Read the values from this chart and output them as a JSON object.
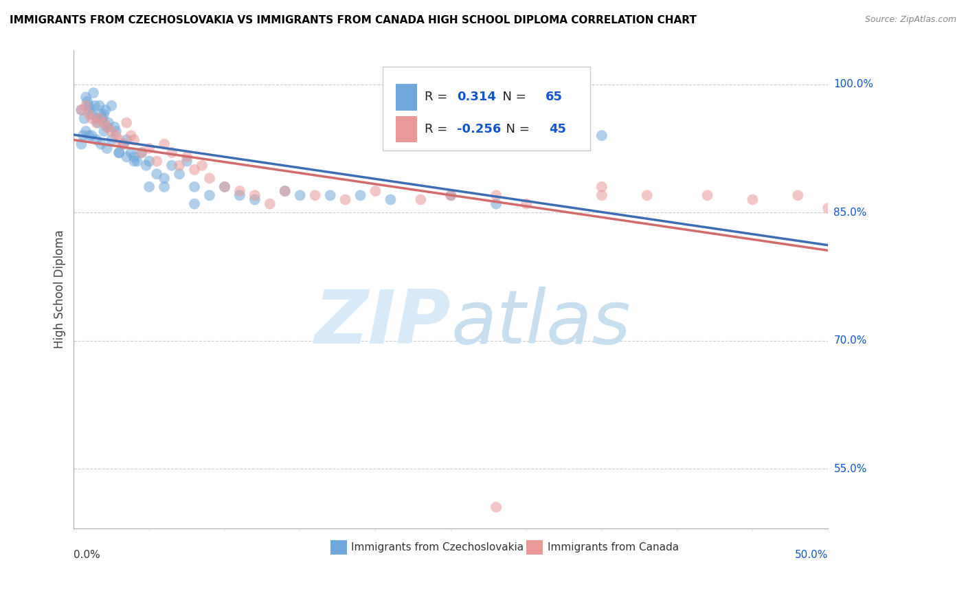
{
  "title": "IMMIGRANTS FROM CZECHOSLOVAKIA VS IMMIGRANTS FROM CANADA HIGH SCHOOL DIPLOMA CORRELATION CHART",
  "source": "Source: ZipAtlas.com",
  "ylabel": "High School Diploma",
  "legend_label1": "Immigrants from Czechoslovakia",
  "legend_label2": "Immigrants from Canada",
  "R1": 0.314,
  "N1": 65,
  "R2": -0.256,
  "N2": 45,
  "color_blue": "#6fa8dc",
  "color_pink": "#ea9999",
  "color_blue_line": "#3d6eb5",
  "color_pink_line": "#d46b6b",
  "color_accent": "#1155cc",
  "background": "#ffffff",
  "xlim": [
    0.0,
    0.5
  ],
  "ylim": [
    0.48,
    1.04
  ],
  "ytick_values": [
    1.0,
    0.85,
    0.7,
    0.55
  ],
  "ytick_labels": [
    "100.0%",
    "85.0%",
    "70.0%",
    "55.0%"
  ],
  "blue_x": [
    0.005,
    0.007,
    0.008,
    0.009,
    0.01,
    0.011,
    0.012,
    0.013,
    0.014,
    0.015,
    0.016,
    0.017,
    0.018,
    0.019,
    0.02,
    0.021,
    0.022,
    0.023,
    0.025,
    0.027,
    0.028,
    0.03,
    0.033,
    0.035,
    0.038,
    0.04,
    0.042,
    0.045,
    0.048,
    0.05,
    0.055,
    0.06,
    0.065,
    0.07,
    0.075,
    0.08,
    0.09,
    0.1,
    0.11,
    0.12,
    0.14,
    0.15,
    0.17,
    0.19,
    0.21,
    0.25,
    0.28,
    0.005,
    0.006,
    0.008,
    0.01,
    0.012,
    0.015,
    0.018,
    0.02,
    0.022,
    0.025,
    0.03,
    0.035,
    0.04,
    0.05,
    0.06,
    0.08,
    0.33,
    0.35
  ],
  "blue_y": [
    0.97,
    0.96,
    0.985,
    0.98,
    0.975,
    0.97,
    0.965,
    0.99,
    0.975,
    0.96,
    0.955,
    0.975,
    0.965,
    0.96,
    0.965,
    0.97,
    0.95,
    0.955,
    0.975,
    0.95,
    0.945,
    0.92,
    0.93,
    0.935,
    0.92,
    0.915,
    0.91,
    0.92,
    0.905,
    0.91,
    0.895,
    0.89,
    0.905,
    0.895,
    0.91,
    0.88,
    0.87,
    0.88,
    0.87,
    0.865,
    0.875,
    0.87,
    0.87,
    0.87,
    0.865,
    0.87,
    0.86,
    0.93,
    0.94,
    0.945,
    0.94,
    0.94,
    0.935,
    0.93,
    0.945,
    0.925,
    0.935,
    0.92,
    0.915,
    0.91,
    0.88,
    0.88,
    0.86,
    0.95,
    0.94
  ],
  "pink_x": [
    0.005,
    0.008,
    0.01,
    0.012,
    0.015,
    0.017,
    0.02,
    0.022,
    0.025,
    0.028,
    0.03,
    0.033,
    0.035,
    0.038,
    0.04,
    0.045,
    0.05,
    0.055,
    0.06,
    0.065,
    0.07,
    0.075,
    0.08,
    0.085,
    0.09,
    0.1,
    0.11,
    0.12,
    0.13,
    0.14,
    0.16,
    0.18,
    0.2,
    0.23,
    0.25,
    0.28,
    0.3,
    0.35,
    0.38,
    0.42,
    0.45,
    0.48,
    0.5,
    0.35,
    0.28
  ],
  "pink_y": [
    0.97,
    0.975,
    0.965,
    0.96,
    0.955,
    0.96,
    0.955,
    0.95,
    0.945,
    0.94,
    0.935,
    0.93,
    0.955,
    0.94,
    0.935,
    0.92,
    0.925,
    0.91,
    0.93,
    0.92,
    0.905,
    0.915,
    0.9,
    0.905,
    0.89,
    0.88,
    0.875,
    0.87,
    0.86,
    0.875,
    0.87,
    0.865,
    0.875,
    0.865,
    0.87,
    0.87,
    0.86,
    0.87,
    0.87,
    0.87,
    0.865,
    0.87,
    0.855,
    0.88,
    0.505
  ]
}
